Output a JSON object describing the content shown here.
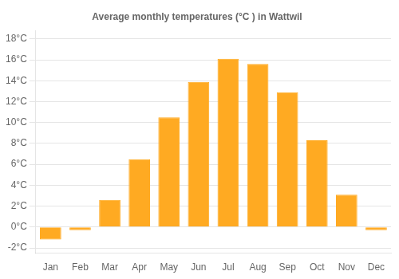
{
  "chart_data": {
    "type": "bar",
    "title": "Average monthly temperatures (°C ) in Wattwil",
    "categories": [
      "Jan",
      "Feb",
      "Mar",
      "Apr",
      "May",
      "Jun",
      "Jul",
      "Aug",
      "Sep",
      "Oct",
      "Nov",
      "Dec"
    ],
    "values": [
      -1.2,
      -0.3,
      2.6,
      6.5,
      10.5,
      13.9,
      16.1,
      15.6,
      12.9,
      8.3,
      3.1,
      -0.3
    ],
    "color": "#FFAA22",
    "ylim": [
      -2.5,
      18.8
    ],
    "yticks": [
      {
        "value": -2,
        "label": "-2°C"
      },
      {
        "value": 0,
        "label": "0°C"
      },
      {
        "value": 2,
        "label": "2°C"
      },
      {
        "value": 4,
        "label": "4°C"
      },
      {
        "value": 6,
        "label": "6°C"
      },
      {
        "value": 8,
        "label": "8°C"
      },
      {
        "value": 10,
        "label": "10°C"
      },
      {
        "value": 12,
        "label": "12°C"
      },
      {
        "value": 14,
        "label": "14°C"
      },
      {
        "value": 16,
        "label": "16°C"
      },
      {
        "value": 18,
        "label": "18°C"
      }
    ],
    "grid": true
  }
}
